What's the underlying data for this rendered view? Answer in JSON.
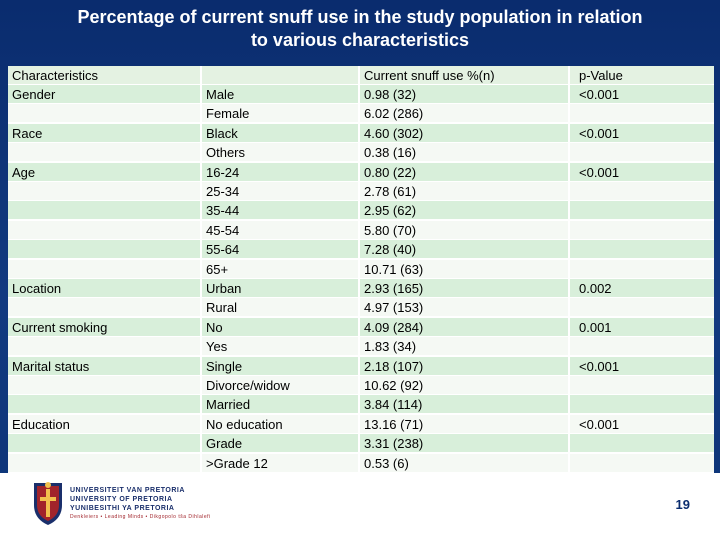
{
  "title": {
    "line1": "Percentage of current snuff use in the study population in relation",
    "line2": "to various characteristics"
  },
  "table": {
    "headers": [
      "Characteristics",
      "",
      "Current snuff use %(n)",
      "p-Value"
    ],
    "rows": [
      [
        "Gender",
        "Male",
        "0.98 (32)",
        "<0.001"
      ],
      [
        "",
        "Female",
        "6.02 (286)",
        ""
      ],
      [
        "Race",
        "Black",
        "4.60 (302)",
        "<0.001"
      ],
      [
        "",
        "Others",
        "0.38 (16)",
        ""
      ],
      [
        "Age",
        "16-24",
        "0.80 (22)",
        "<0.001"
      ],
      [
        "",
        "25-34",
        "2.78 (61)",
        ""
      ],
      [
        "",
        "35-44",
        "2.95 (62)",
        ""
      ],
      [
        "",
        "45-54",
        "5.80 (70)",
        ""
      ],
      [
        "",
        "55-64",
        "7.28 (40)",
        ""
      ],
      [
        "",
        "65+",
        "10.71 (63)",
        ""
      ],
      [
        "Location",
        "Urban",
        "2.93 (165)",
        "0.002"
      ],
      [
        "",
        "Rural",
        "4.97 (153)",
        ""
      ],
      [
        "Current smoking",
        "No",
        "4.09 (284)",
        "0.001"
      ],
      [
        "",
        " Yes",
        "1.83 (34)",
        ""
      ],
      [
        "Marital status",
        "Single",
        "2.18 (107)",
        "<0.001"
      ],
      [
        "",
        "Divorce/widow",
        "10.62 (92)",
        ""
      ],
      [
        "",
        "Married",
        "3.84 (114)",
        ""
      ],
      [
        "Education",
        "No education",
        "13.16 (71)",
        "<0.001"
      ],
      [
        "",
        "Grade",
        "3.31 (238)",
        ""
      ],
      [
        "",
        ">Grade 12",
        "0.53 (6)",
        ""
      ]
    ]
  },
  "footer": {
    "university_line1": "UNIVERSITEIT VAN PRETORIA",
    "university_line2": "UNIVERSITY OF PRETORIA",
    "university_line3": "YUNIBESITHI YA PRETORIA",
    "tagline": "Denkleiers • Leading Minds • Dikgopolo tša Dihlalefi",
    "page_number": "19"
  },
  "colors": {
    "background": "#0a2c6e",
    "row_shaded": "#d8efda",
    "row_light": "#f5f9f4",
    "title_text": "#ffffff"
  }
}
